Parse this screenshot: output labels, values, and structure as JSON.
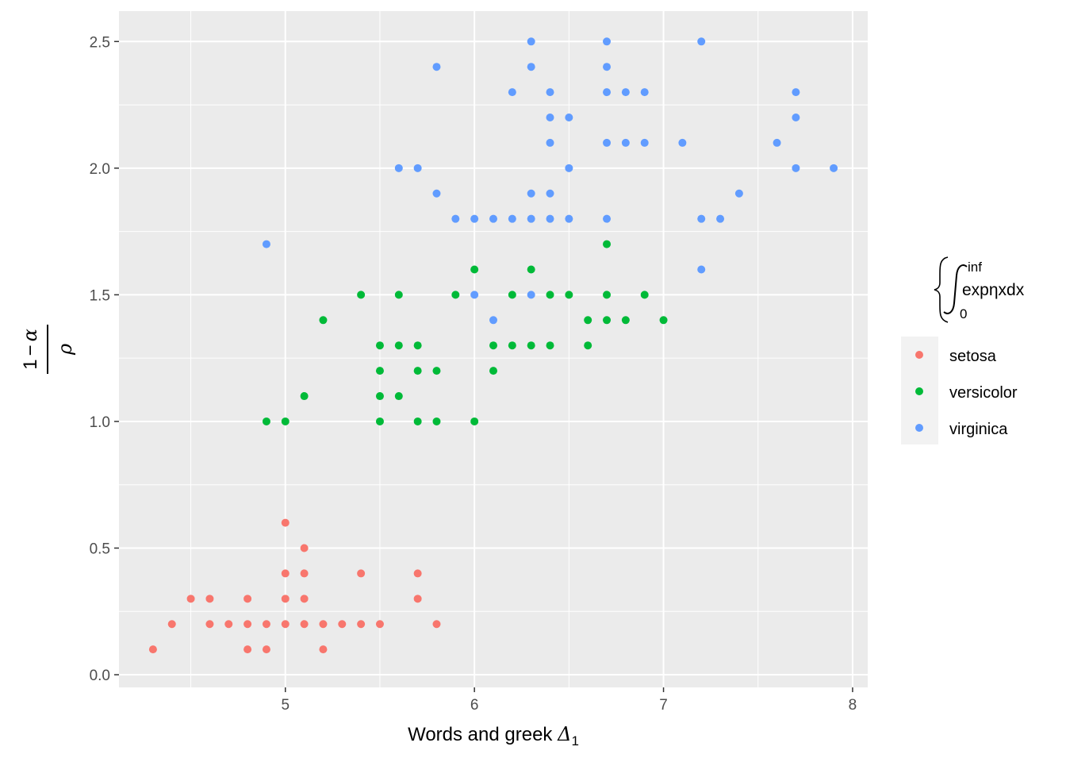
{
  "chart_data": {
    "type": "scatter",
    "xlabel": {
      "text": "Words and greek ",
      "symbol": "Δ",
      "subscript": "1"
    },
    "ylabel": {
      "numerator_lead": "1",
      "numerator_op": "−",
      "numerator_symbol": "α",
      "denominator": "ρ"
    },
    "xlim": [
      4.12,
      8.08
    ],
    "ylim": [
      -0.05,
      2.62
    ],
    "x_ticks": [
      5,
      6,
      7,
      8
    ],
    "x_tick_labels": [
      "5",
      "6",
      "7",
      "8"
    ],
    "y_ticks": [
      0,
      0.5,
      1,
      1.5,
      2,
      2.5
    ],
    "y_tick_labels": [
      "0.0",
      "0.5",
      "1.0",
      "1.5",
      "2.0",
      "2.5"
    ],
    "grid": true,
    "panel_background": "#ebebeb",
    "legend": {
      "position": "right",
      "title": {
        "lower": "0",
        "upper": "inf",
        "body": "exp",
        "symbol": "η",
        "tail": "xdx"
      },
      "entries": [
        "setosa",
        "versicolor",
        "virginica"
      ]
    },
    "series": [
      {
        "name": "setosa",
        "color": "#f8766d",
        "points": [
          [
            4.3,
            0.1
          ],
          [
            4.4,
            0.2
          ],
          [
            4.5,
            0.3
          ],
          [
            4.6,
            0.2
          ],
          [
            4.6,
            0.3
          ],
          [
            4.7,
            0.2
          ],
          [
            4.8,
            0.1
          ],
          [
            4.8,
            0.2
          ],
          [
            4.8,
            0.3
          ],
          [
            4.9,
            0.1
          ],
          [
            4.9,
            0.2
          ],
          [
            5.0,
            0.2
          ],
          [
            5.0,
            0.3
          ],
          [
            5.0,
            0.4
          ],
          [
            5.0,
            0.6
          ],
          [
            5.1,
            0.2
          ],
          [
            5.1,
            0.3
          ],
          [
            5.1,
            0.4
          ],
          [
            5.1,
            0.5
          ],
          [
            5.2,
            0.1
          ],
          [
            5.2,
            0.2
          ],
          [
            5.3,
            0.2
          ],
          [
            5.4,
            0.2
          ],
          [
            5.4,
            0.4
          ],
          [
            5.5,
            0.2
          ],
          [
            5.7,
            0.3
          ],
          [
            5.7,
            0.4
          ],
          [
            5.8,
            0.2
          ]
        ]
      },
      {
        "name": "versicolor",
        "color": "#00ba38",
        "points": [
          [
            4.9,
            1.0
          ],
          [
            5.0,
            1.0
          ],
          [
            5.1,
            1.1
          ],
          [
            5.2,
            1.4
          ],
          [
            5.4,
            1.5
          ],
          [
            5.5,
            1.0
          ],
          [
            5.5,
            1.1
          ],
          [
            5.5,
            1.2
          ],
          [
            5.5,
            1.3
          ],
          [
            5.6,
            1.1
          ],
          [
            5.6,
            1.3
          ],
          [
            5.6,
            1.5
          ],
          [
            5.7,
            1.0
          ],
          [
            5.7,
            1.2
          ],
          [
            5.7,
            1.3
          ],
          [
            5.8,
            1.0
          ],
          [
            5.8,
            1.2
          ],
          [
            5.9,
            1.5
          ],
          [
            6.0,
            1.0
          ],
          [
            6.0,
            1.6
          ],
          [
            6.1,
            1.2
          ],
          [
            6.1,
            1.3
          ],
          [
            6.2,
            1.3
          ],
          [
            6.2,
            1.5
          ],
          [
            6.3,
            1.3
          ],
          [
            6.3,
            1.6
          ],
          [
            6.4,
            1.3
          ],
          [
            6.4,
            1.5
          ],
          [
            6.5,
            1.5
          ],
          [
            6.6,
            1.3
          ],
          [
            6.6,
            1.4
          ],
          [
            6.7,
            1.4
          ],
          [
            6.7,
            1.5
          ],
          [
            6.7,
            1.7
          ],
          [
            6.8,
            1.4
          ],
          [
            6.9,
            1.5
          ],
          [
            7.0,
            1.4
          ]
        ]
      },
      {
        "name": "virginica",
        "color": "#619cff",
        "points": [
          [
            4.9,
            1.7
          ],
          [
            5.6,
            2.0
          ],
          [
            5.7,
            2.0
          ],
          [
            5.8,
            1.9
          ],
          [
            5.8,
            2.4
          ],
          [
            5.9,
            1.8
          ],
          [
            6.0,
            1.5
          ],
          [
            6.0,
            1.8
          ],
          [
            6.1,
            1.4
          ],
          [
            6.1,
            1.8
          ],
          [
            6.2,
            1.8
          ],
          [
            6.2,
            2.3
          ],
          [
            6.3,
            1.5
          ],
          [
            6.3,
            1.8
          ],
          [
            6.3,
            1.9
          ],
          [
            6.3,
            2.4
          ],
          [
            6.3,
            2.5
          ],
          [
            6.4,
            1.8
          ],
          [
            6.4,
            1.9
          ],
          [
            6.4,
            2.1
          ],
          [
            6.4,
            2.2
          ],
          [
            6.4,
            2.3
          ],
          [
            6.5,
            1.8
          ],
          [
            6.5,
            2.0
          ],
          [
            6.5,
            2.2
          ],
          [
            6.7,
            1.8
          ],
          [
            6.7,
            2.1
          ],
          [
            6.7,
            2.3
          ],
          [
            6.7,
            2.4
          ],
          [
            6.7,
            2.5
          ],
          [
            6.8,
            2.1
          ],
          [
            6.8,
            2.3
          ],
          [
            6.9,
            2.1
          ],
          [
            6.9,
            2.3
          ],
          [
            7.1,
            2.1
          ],
          [
            7.2,
            1.6
          ],
          [
            7.2,
            1.8
          ],
          [
            7.2,
            2.5
          ],
          [
            7.3,
            1.8
          ],
          [
            7.4,
            1.9
          ],
          [
            7.6,
            2.1
          ],
          [
            7.7,
            2.0
          ],
          [
            7.7,
            2.2
          ],
          [
            7.7,
            2.3
          ],
          [
            7.9,
            2.0
          ]
        ]
      }
    ]
  }
}
